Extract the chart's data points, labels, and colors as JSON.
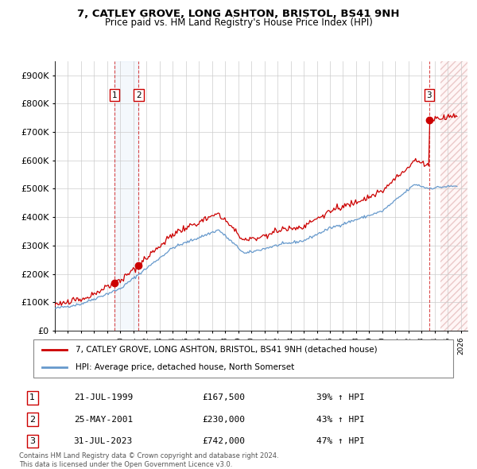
{
  "title1": "7, CATLEY GROVE, LONG ASHTON, BRISTOL, BS41 9NH",
  "title2": "Price paid vs. HM Land Registry's House Price Index (HPI)",
  "ylabel_ticks": [
    "£0",
    "£100K",
    "£200K",
    "£300K",
    "£400K",
    "£500K",
    "£600K",
    "£700K",
    "£800K",
    "£900K"
  ],
  "ytick_values": [
    0,
    100000,
    200000,
    300000,
    400000,
    500000,
    600000,
    700000,
    800000,
    900000
  ],
  "ylim": [
    0,
    950000
  ],
  "xlim_start": 1995.0,
  "xlim_end": 2026.5,
  "xtick_years": [
    1995,
    1996,
    1997,
    1998,
    1999,
    2000,
    2001,
    2002,
    2003,
    2004,
    2005,
    2006,
    2007,
    2008,
    2009,
    2010,
    2011,
    2012,
    2013,
    2014,
    2015,
    2016,
    2017,
    2018,
    2019,
    2020,
    2021,
    2022,
    2023,
    2024,
    2025,
    2026
  ],
  "legend_line1": "7, CATLEY GROVE, LONG ASHTON, BRISTOL, BS41 9NH (detached house)",
  "legend_line2": "HPI: Average price, detached house, North Somerset",
  "sale1_date": "21-JUL-1999",
  "sale1_price": 167500,
  "sale1_year": 1999.55,
  "sale1_pct": "39% ↑ HPI",
  "sale2_date": "25-MAY-2001",
  "sale2_price": 230000,
  "sale2_year": 2001.4,
  "sale2_pct": "43% ↑ HPI",
  "sale3_date": "31-JUL-2023",
  "sale3_price": 742000,
  "sale3_year": 2023.58,
  "sale3_pct": "47% ↑ HPI",
  "copyright": "Contains HM Land Registry data © Crown copyright and database right 2024.\nThis data is licensed under the Open Government Licence v3.0.",
  "sale_color": "#cc0000",
  "hpi_color": "#6699cc",
  "vline_color": "#cc0000",
  "hatch_start": 2024.42,
  "sale_shade_color": "#ddeeff",
  "n_points": 370,
  "hpi_seed": 42,
  "red_seed": 123,
  "hpi_noise_scale": 2500,
  "red_noise_scale": 5000
}
